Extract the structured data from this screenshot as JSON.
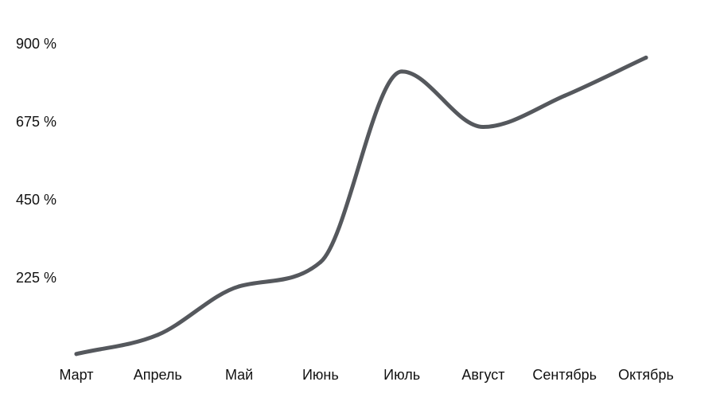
{
  "chart_data": {
    "type": "line",
    "categories": [
      "Март",
      "Апрель",
      "Май",
      "Июнь",
      "Июль",
      "Август",
      "Сентябрь",
      "Октябрь"
    ],
    "series": [
      {
        "values": [
          5,
          60,
          200,
          270,
          820,
          660,
          750,
          860
        ],
        "color": "#55585d"
      }
    ],
    "yticks": [
      225,
      450,
      675,
      900
    ],
    "ytick_labels": [
      "225 %",
      "450 %",
      "675 %",
      "900 %"
    ],
    "ylim": [
      0,
      900
    ],
    "title": "",
    "xlabel": "",
    "ylabel": "",
    "grid": false,
    "legend": "none"
  }
}
